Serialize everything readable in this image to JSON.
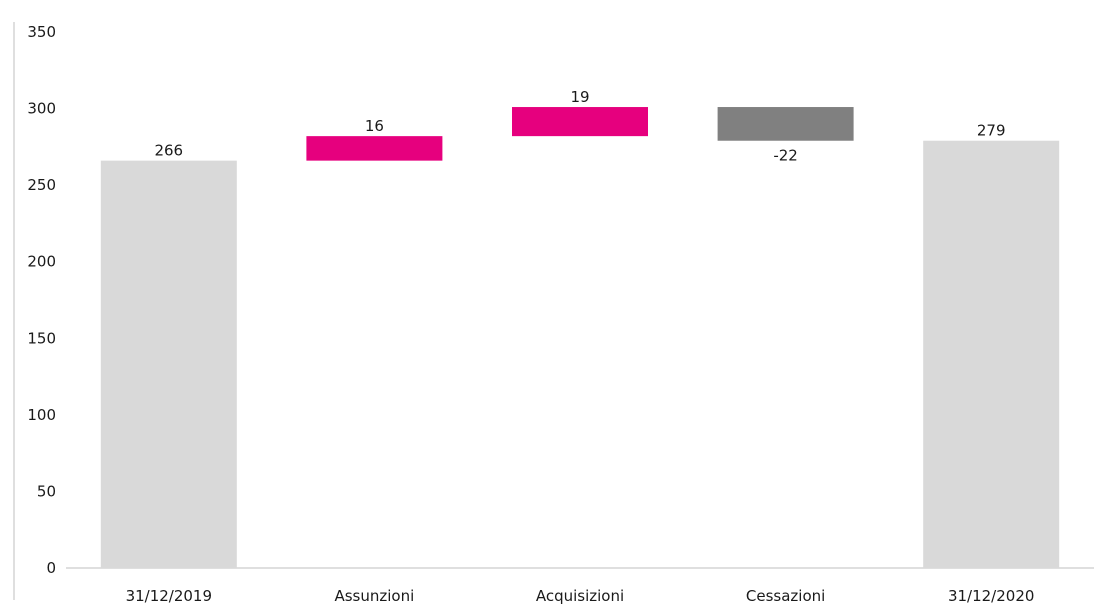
{
  "chart_data": {
    "type": "bar",
    "subtype": "waterfall",
    "categories": [
      "31/12/2019",
      "Assunzioni",
      "Acquisizioni",
      "Cessazioni",
      "31/12/2020"
    ],
    "values": [
      266,
      16,
      19,
      -22,
      279
    ],
    "bar_kind": [
      "total",
      "delta",
      "delta",
      "delta",
      "total"
    ],
    "data_labels": [
      "266",
      "16",
      "19",
      "-22",
      "279"
    ],
    "yticks": [
      "0",
      "50",
      "100",
      "150",
      "200",
      "250",
      "300",
      "350"
    ],
    "ylim": [
      0,
      350
    ],
    "grid": false,
    "legend": "none",
    "colors": {
      "total": "#d9d9d9",
      "increase": "#e6007e",
      "decrease": "#808080",
      "axis": "#bfbfbf",
      "text": "#1a1a1a"
    }
  }
}
